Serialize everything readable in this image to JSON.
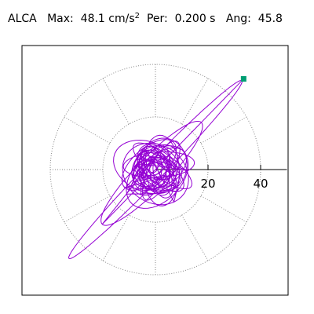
{
  "title": {
    "station": "ALCA",
    "max_label": "Max:",
    "max_value": "48.1",
    "max_unit": "cm/s",
    "max_unit_exp": "2",
    "period_label": "Per:",
    "period_value": "0.200 s",
    "angle_label": "Ang:",
    "angle_value": "45.8"
  },
  "chart_data": {
    "type": "polar",
    "radial_range": [
      0,
      50
    ],
    "radial_ticks": [
      20,
      40
    ],
    "tick_labels": [
      "20",
      "40"
    ],
    "angular_spokes_deg": [
      0,
      30,
      60,
      90,
      120,
      150,
      180,
      210,
      240,
      270,
      300,
      330
    ],
    "grid": true,
    "max_point": {
      "value": 48.1,
      "angle_deg": 45.8
    },
    "colors": {
      "trace": "#9400d3",
      "marker": "#009e73",
      "grid": "#888888",
      "axis": "#000000"
    }
  }
}
